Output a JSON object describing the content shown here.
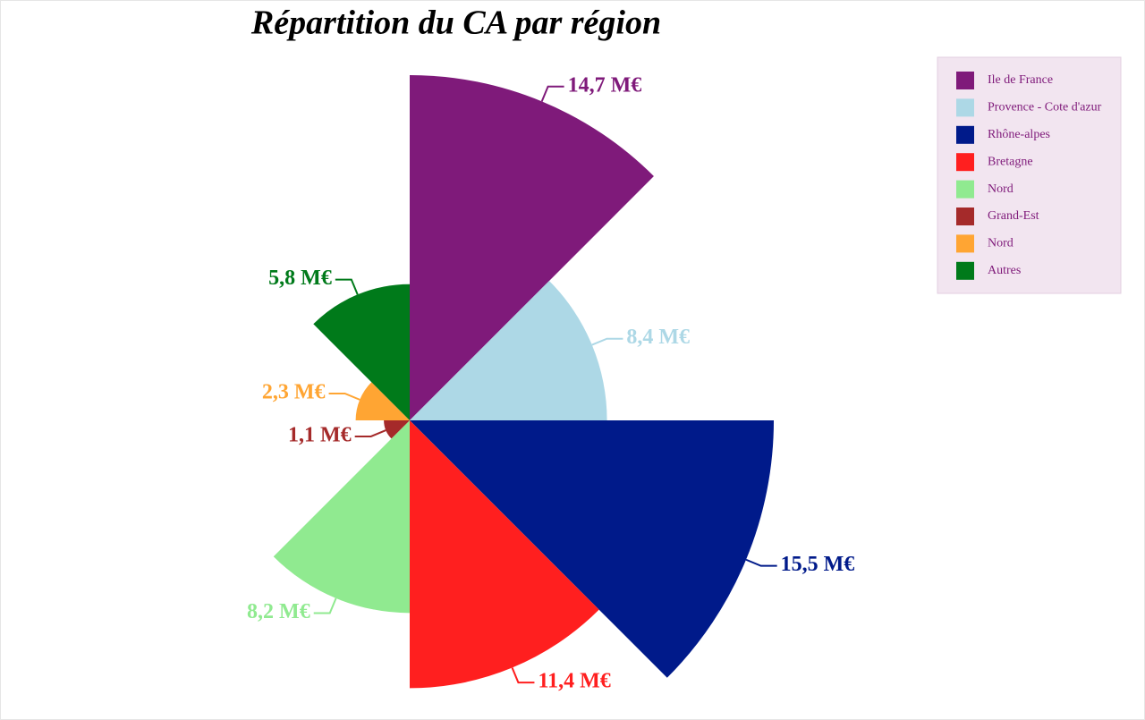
{
  "chart_data": {
    "type": "polar-area",
    "title": "Répartition du CA par région",
    "categories": [
      "Ile de France",
      "Provence - Cote d'azur",
      "Rhône-alpes",
      "Bretagne",
      "Nord",
      "Grand-Est",
      "Nord",
      "Autres"
    ],
    "values": [
      14.7,
      8.4,
      15.5,
      11.4,
      8.2,
      1.1,
      2.3,
      5.8
    ],
    "value_labels": [
      "14,7 M€",
      "8,4 M€",
      "15,5 M€",
      "11,4 M€",
      "8,2 M€",
      "1,1 M€",
      "2,3 M€",
      "5,8 M€"
    ],
    "colors": [
      "#7f1a7a",
      "#add8e6",
      "#001a8a",
      "#ff1f1f",
      "#90ea90",
      "#a52a2a",
      "#ffa533",
      "#007a1a"
    ],
    "legend": "top-right"
  }
}
